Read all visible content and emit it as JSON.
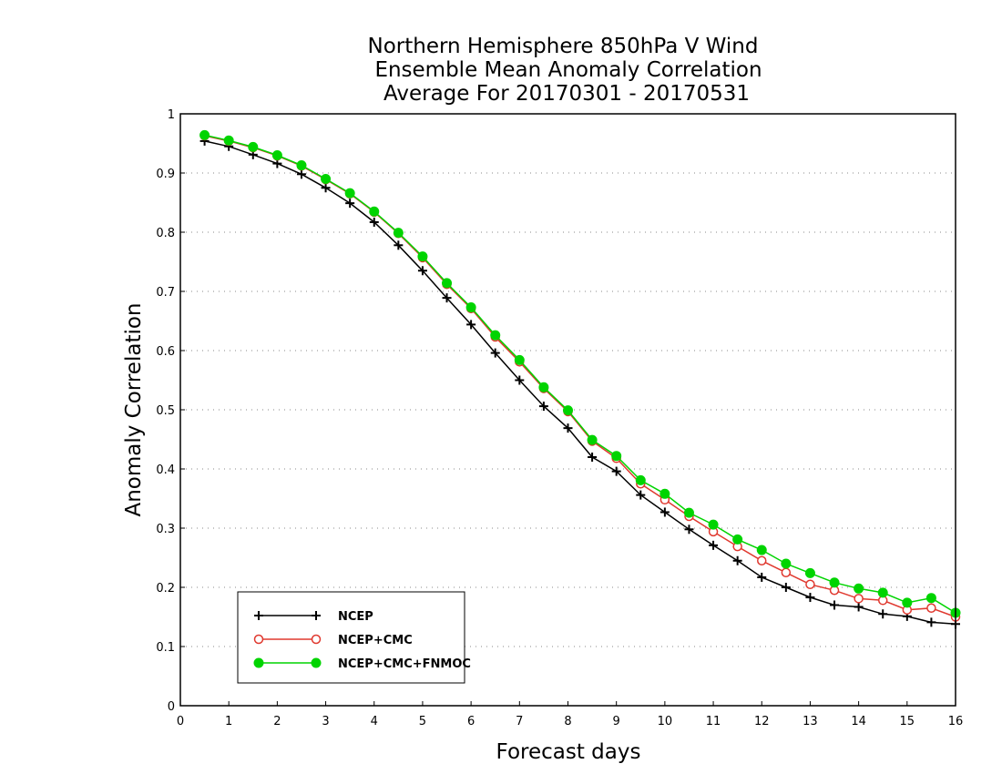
{
  "chart_data": {
    "type": "line",
    "title": [
      "Northern Hemisphere 850hPa V Wind",
      "Ensemble Mean Anomaly Correlation",
      "Average For 20170301 - 20170531"
    ],
    "xlabel": "Forecast days",
    "ylabel": "Anomaly Correlation",
    "xlim": [
      0,
      16
    ],
    "ylim": [
      0,
      1
    ],
    "xticks": [
      0,
      1,
      2,
      3,
      4,
      5,
      6,
      7,
      8,
      9,
      10,
      11,
      12,
      13,
      14,
      15,
      16
    ],
    "yticks": [
      0,
      0.1,
      0.2,
      0.3,
      0.4,
      0.5,
      0.6,
      0.7,
      0.8,
      0.9,
      1
    ],
    "ytick_labels": [
      "0",
      "0.1",
      "0.2",
      "0.3",
      "0.4",
      "0.5",
      "0.6",
      "0.7",
      "0.8",
      "0.9",
      "1"
    ],
    "grid": "horizontal dotted",
    "legend_position": "bottom-left",
    "x": [
      0.5,
      1.0,
      1.5,
      2.0,
      2.5,
      3.0,
      3.5,
      4.0,
      4.5,
      5.0,
      5.5,
      6.0,
      6.5,
      7.0,
      7.5,
      8.0,
      8.5,
      9.0,
      9.5,
      10.0,
      10.5,
      11.0,
      11.5,
      12.0,
      12.5,
      13.0,
      13.5,
      14.0,
      14.5,
      15.0,
      15.5,
      16.0
    ],
    "series": [
      {
        "name": "NCEP",
        "color": "#000000",
        "marker": "plus",
        "values": [
          0.954,
          0.945,
          0.931,
          0.916,
          0.898,
          0.875,
          0.849,
          0.817,
          0.778,
          0.735,
          0.689,
          0.644,
          0.596,
          0.55,
          0.506,
          0.469,
          0.42,
          0.396,
          0.356,
          0.327,
          0.298,
          0.271,
          0.245,
          0.217,
          0.2,
          0.183,
          0.17,
          0.167,
          0.155,
          0.151,
          0.141,
          0.138
        ]
      },
      {
        "name": "NCEP+CMC",
        "color": "#e0392f",
        "marker": "open-circle",
        "values": [
          0.963,
          0.954,
          0.943,
          0.929,
          0.912,
          0.889,
          0.865,
          0.834,
          0.798,
          0.757,
          0.712,
          0.671,
          0.623,
          0.581,
          0.536,
          0.497,
          0.447,
          0.418,
          0.375,
          0.348,
          0.32,
          0.294,
          0.269,
          0.245,
          0.225,
          0.205,
          0.195,
          0.181,
          0.178,
          0.162,
          0.165,
          0.15
        ]
      },
      {
        "name": "NCEP+CMC+FNMOC",
        "color": "#00d400",
        "marker": "filled-circle",
        "values": [
          0.964,
          0.955,
          0.944,
          0.93,
          0.913,
          0.89,
          0.866,
          0.835,
          0.799,
          0.759,
          0.714,
          0.673,
          0.626,
          0.584,
          0.538,
          0.499,
          0.449,
          0.422,
          0.381,
          0.358,
          0.326,
          0.306,
          0.281,
          0.263,
          0.24,
          0.224,
          0.208,
          0.198,
          0.191,
          0.174,
          0.182,
          0.157
        ]
      }
    ]
  }
}
